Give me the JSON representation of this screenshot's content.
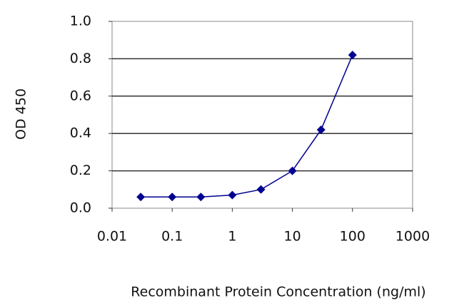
{
  "chart_data": {
    "type": "line",
    "x_label": "Recombinant Protein Concentration (ng/ml)",
    "y_label": "OD 450",
    "x": [
      0.03,
      0.1,
      0.3,
      1,
      3,
      10,
      30,
      100
    ],
    "values": [
      0.06,
      0.06,
      0.06,
      0.07,
      0.1,
      0.2,
      0.42,
      0.82
    ],
    "color": "#000090",
    "xscale": "log",
    "xlim": [
      0.01,
      1000
    ],
    "xticks": [
      0.01,
      0.1,
      1,
      10,
      100,
      1000
    ],
    "ylim": [
      0,
      1
    ],
    "yticks": [
      {
        "value": 0,
        "label": "0.0"
      },
      0.2,
      0.4,
      0.6,
      0.8,
      {
        "value": 1,
        "label": "1.0"
      }
    ],
    "grid": true
  }
}
